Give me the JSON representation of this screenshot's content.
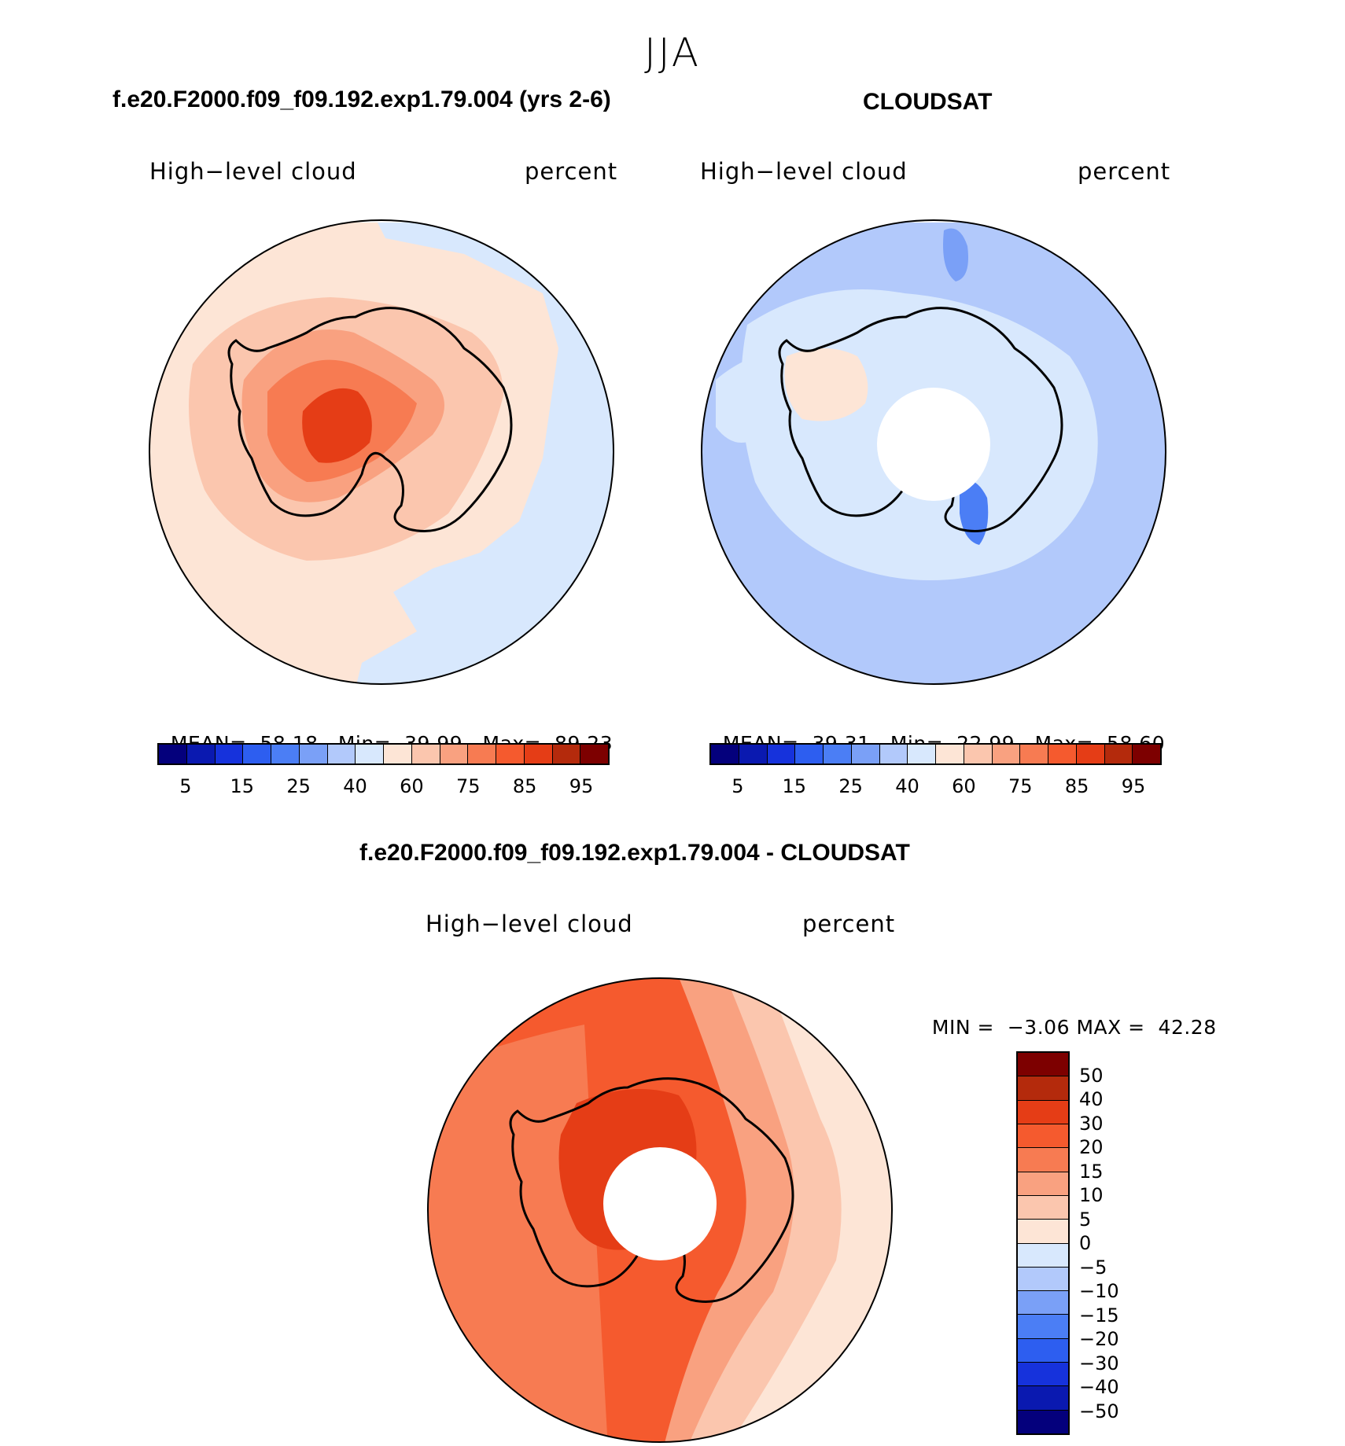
{
  "page": {
    "season": "JJA",
    "case_title": "f.e20.F2000.f09_f09.192.exp1.79.004 (yrs 2-6)",
    "obs_title": "CLOUDSAT",
    "diff_title": "f.e20.F2000.f09_f09.192.exp1.79.004 - CLOUDSAT"
  },
  "panels": {
    "model": {
      "variable": "High−level cloud",
      "units": "percent",
      "mean_label": "MEAN=",
      "mean": "58.18",
      "min_label": "Min=",
      "min": "39.99",
      "max_label": "Max=",
      "max": "89.23"
    },
    "obs": {
      "variable": "High−level cloud",
      "units": "percent",
      "mean_label": "MEAN=",
      "mean": "39.31",
      "min_label": "Min=",
      "min": "22.99",
      "max_label": "Max=",
      "max": "58.60"
    },
    "diff": {
      "variable": "High−level cloud",
      "units": "percent",
      "min_label": "MIN =",
      "min": "−3.06",
      "max_label": "MAX =",
      "max": "42.28"
    }
  },
  "colorbar_abs": {
    "colors": [
      "#04007c",
      "#0a19b0",
      "#1632dc",
      "#2d5ef0",
      "#4b7ef5",
      "#7aa0f7",
      "#b2c9fb",
      "#d8e8fd",
      "#fde5d6",
      "#fbc6ae",
      "#f9a180",
      "#f77b52",
      "#f55a2e",
      "#e53d16",
      "#b42a0c",
      "#7d0000"
    ],
    "ticks": [
      "5",
      "15",
      "25",
      "40",
      "60",
      "75",
      "85",
      "95"
    ]
  },
  "colorbar_diff": {
    "colors": [
      "#7d0000",
      "#b42a0c",
      "#e53d16",
      "#f55a2e",
      "#f77b52",
      "#f9a180",
      "#fbc6ae",
      "#fde5d6",
      "#d8e8fd",
      "#b2c9fb",
      "#7aa0f7",
      "#4b7ef5",
      "#2d5ef0",
      "#1632dc",
      "#0a19b0",
      "#04007c"
    ],
    "ticks": [
      "50",
      "40",
      "30",
      "20",
      "15",
      "10",
      "5",
      "0",
      "−5",
      "−10",
      "−15",
      "−20",
      "−30",
      "−40",
      "−50"
    ]
  },
  "maps": {
    "model_field": {
      "outer": "#fde5d6",
      "ring": "#fbc6ae",
      "inner": "#f9a180",
      "core": "#e53d16",
      "obs_patch": "#d8e8fd"
    },
    "obs_field": {
      "outer": "#b2c9fb",
      "mid": "#d8e8fd",
      "patch": "#fde5d6",
      "dark": "#4b7ef5",
      "hole": "#ffffff"
    },
    "diff_field": {
      "west": "#f55a2e",
      "mid": "#f77b52",
      "east_a": "#f9a180",
      "east_b": "#fbc6ae",
      "east_c": "#fde5d6",
      "core": "#e53d16",
      "hole": "#ffffff"
    }
  }
}
